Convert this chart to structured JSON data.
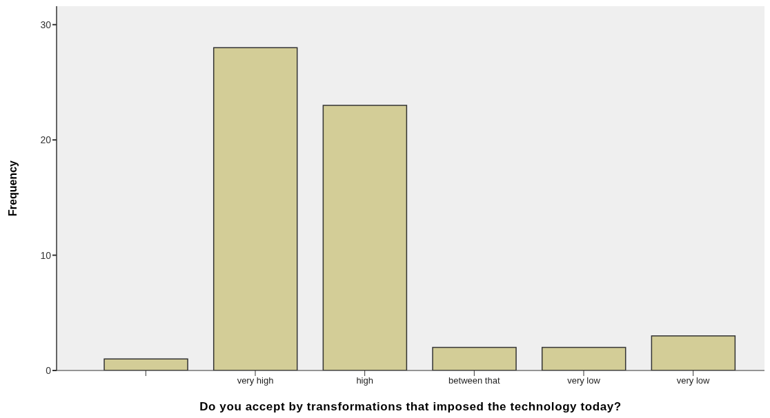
{
  "chart_data": {
    "type": "bar",
    "xlabel": "Do you accept by transformations that imposed the technology today?",
    "ylabel": "Frequency",
    "categories": [
      null,
      "very high",
      "high",
      "between that",
      "very low",
      "very low"
    ],
    "values": [
      1,
      28,
      23,
      2,
      2,
      3
    ],
    "color": "#d3cd97",
    "ylim": [
      0,
      31.6
    ],
    "yticks": [
      0,
      10,
      20,
      30
    ],
    "grid": false
  }
}
